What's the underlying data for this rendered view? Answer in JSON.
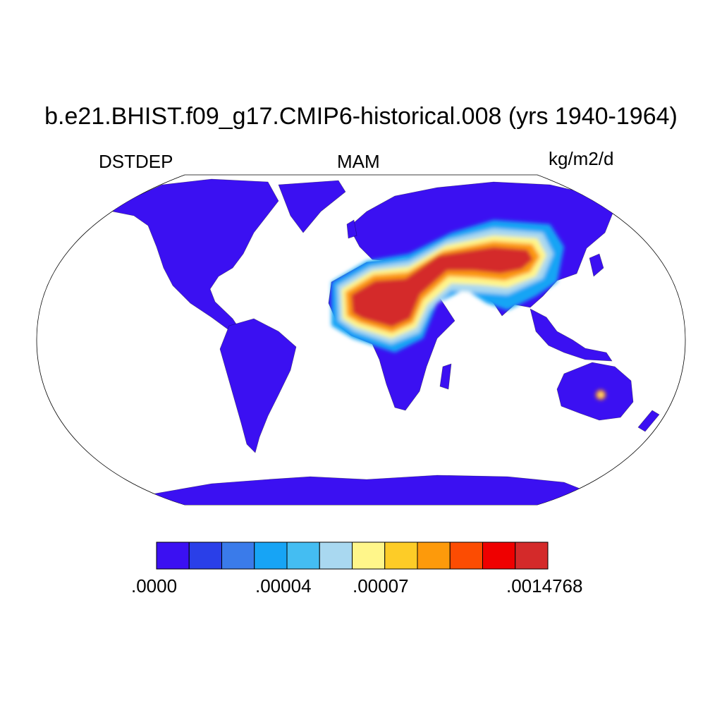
{
  "title": "b.e21.BHIST.f09_g17.CMIP6-historical.008 (yrs 1940-1964)",
  "left_string": "DSTDEP",
  "center_string": "MAM",
  "right_string": "kg/m2/d",
  "map": {
    "projection": "robinson",
    "land_fill_color": "#3b10f2",
    "ocean_fill_color": "#ffffff"
  },
  "colorbar": {
    "colors": [
      "#3b10f2",
      "#2a3fe8",
      "#3a7bea",
      "#17a4f5",
      "#44bdf2",
      "#a9d8f0",
      "#fff68a",
      "#fdcc27",
      "#fd9a0b",
      "#fc4c02",
      "#ef0000",
      "#d42a2a"
    ],
    "labels": [
      ".0000",
      ".00004",
      ".00007",
      ".0014768"
    ]
  }
}
